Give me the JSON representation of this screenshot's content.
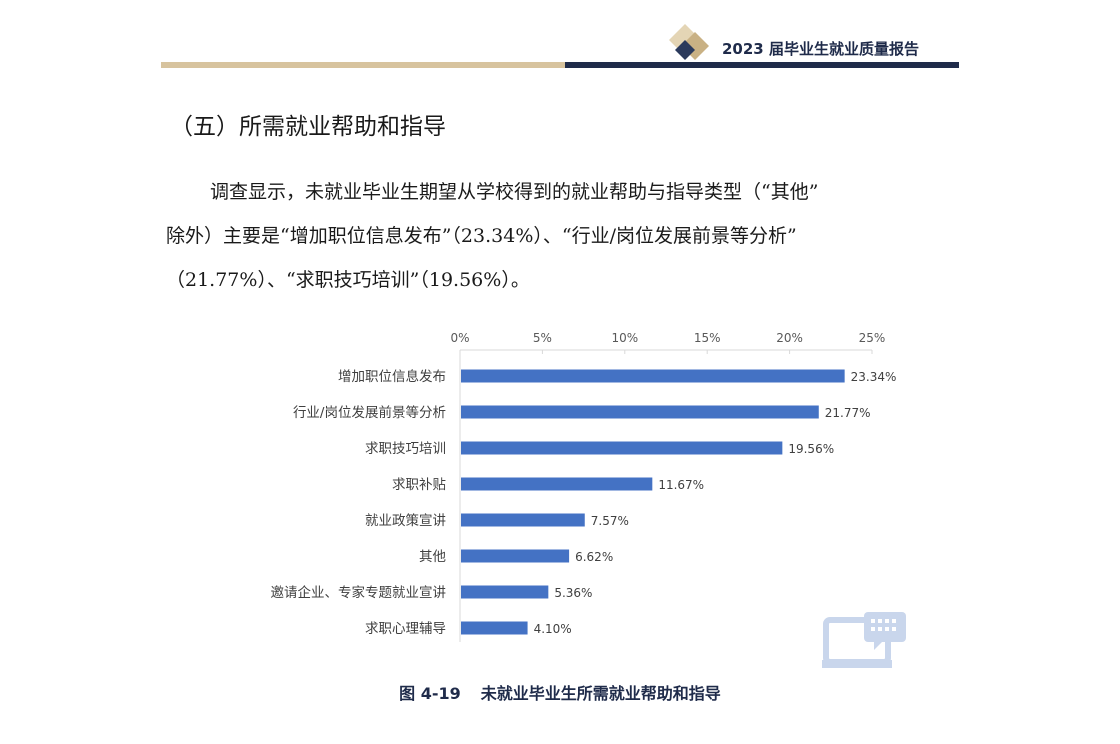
{
  "header": {
    "title": "2023 届毕业生就业质量报告"
  },
  "section": {
    "heading": "（五）所需就业帮助和指导"
  },
  "paragraph": {
    "line1": "调查显示，未就业毕业生期望从学校得到的就业帮助与指导类型（“其他”",
    "line2": "除外）主要是“增加职位信息发布”（23.34%）、“行业/岗位发展前景等分析”",
    "line3": "（21.77%）、“求职技巧培训”（19.56%）。"
  },
  "caption": {
    "number": "图 4-19",
    "text": "未就业毕业生所需就业帮助和指导"
  },
  "colors": {
    "bar": "#4472c4",
    "navy": "#1f2b4a",
    "gold": "#d7c39e"
  },
  "chart_data": {
    "type": "bar",
    "orientation": "horizontal",
    "categories": [
      "增加职位信息发布",
      "行业/岗位发展前景等分析",
      "求职技巧培训",
      "求职补贴",
      "就业政策宣讲",
      "其他",
      "邀请企业、专家专题就业宣讲",
      "求职心理辅导"
    ],
    "values": [
      23.34,
      21.77,
      19.56,
      11.67,
      7.57,
      6.62,
      5.36,
      4.1
    ],
    "value_labels": [
      "23.34%",
      "21.77%",
      "19.56%",
      "11.67%",
      "7.57%",
      "6.62%",
      "5.36%",
      "4.10%"
    ],
    "xticks": [
      "0%",
      "5%",
      "10%",
      "15%",
      "20%",
      "25%"
    ],
    "xlim": [
      0,
      25
    ],
    "x_axis_position": "top",
    "grid": false,
    "legend": "none"
  }
}
